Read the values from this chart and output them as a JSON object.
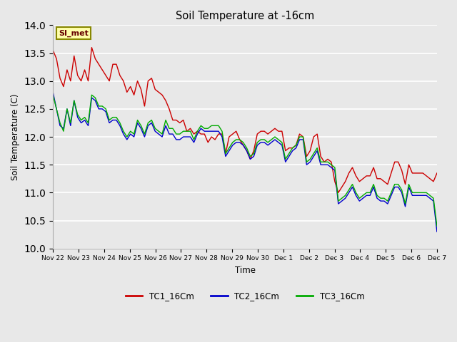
{
  "title": "Soil Temperature at -16cm",
  "xlabel": "Time",
  "ylabel": "Soil Temperature (C)",
  "ylim": [
    10.0,
    14.0
  ],
  "yticks": [
    10.0,
    10.5,
    11.0,
    11.5,
    12.0,
    12.5,
    13.0,
    13.5,
    14.0
  ],
  "fig_bg_color": "#e8e8e8",
  "plot_bg_color": "#e8e8e8",
  "annotation_text": "SI_met",
  "annotation_bg": "#ffffaa",
  "annotation_border": "#888800",
  "line_colors": {
    "TC1_16Cm": "#cc0000",
    "TC2_16Cm": "#0000cc",
    "TC3_16Cm": "#00aa00"
  },
  "xtick_labels": [
    "Nov 22",
    "Nov 23",
    "Nov 24",
    "Nov 25",
    "Nov 26",
    "Nov 27",
    "Nov 28",
    "Nov 29",
    "Nov 30",
    "Dec 1",
    "Dec 2",
    "Dec 3",
    "Dec 4",
    "Dec 5",
    "Dec 6",
    "Dec 7"
  ],
  "TC1_16Cm": [
    13.55,
    13.4,
    13.05,
    12.9,
    13.2,
    13.0,
    13.45,
    13.1,
    13.0,
    13.2,
    13.0,
    13.6,
    13.4,
    13.3,
    13.2,
    13.1,
    13.0,
    13.3,
    13.3,
    13.1,
    13.0,
    12.8,
    12.9,
    12.75,
    13.0,
    12.85,
    12.55,
    13.0,
    13.05,
    12.85,
    12.8,
    12.75,
    12.65,
    12.5,
    12.3,
    12.3,
    12.25,
    12.3,
    12.1,
    12.15,
    12.05,
    12.1,
    12.05,
    12.05,
    11.9,
    12.0,
    11.95,
    12.05,
    12.05,
    11.7,
    12.0,
    12.05,
    12.1,
    11.95,
    11.85,
    11.75,
    11.6,
    11.75,
    12.05,
    12.1,
    12.1,
    12.05,
    12.1,
    12.15,
    12.1,
    12.1,
    11.75,
    11.8,
    11.8,
    11.85,
    12.05,
    12.0,
    11.65,
    11.75,
    12.0,
    12.05,
    11.65,
    11.55,
    11.6,
    11.55,
    11.2,
    11.0,
    11.1,
    11.2,
    11.35,
    11.45,
    11.3,
    11.2,
    11.25,
    11.3,
    11.3,
    11.45,
    11.25,
    11.25,
    11.2,
    11.15,
    11.35,
    11.55,
    11.55,
    11.4,
    11.15,
    11.5,
    11.35,
    11.35,
    11.35,
    11.35,
    11.3,
    11.25,
    11.2,
    11.35
  ],
  "TC2_16Cm": [
    12.8,
    12.5,
    12.2,
    12.15,
    12.5,
    12.2,
    12.65,
    12.35,
    12.25,
    12.3,
    12.2,
    12.7,
    12.65,
    12.5,
    12.5,
    12.45,
    12.25,
    12.3,
    12.3,
    12.2,
    12.05,
    11.95,
    12.05,
    12.0,
    12.25,
    12.15,
    12.0,
    12.2,
    12.25,
    12.1,
    12.05,
    12.0,
    12.2,
    12.05,
    12.05,
    11.95,
    11.95,
    12.0,
    12.0,
    12.0,
    11.9,
    12.05,
    12.15,
    12.1,
    12.1,
    12.1,
    12.1,
    12.1,
    12.0,
    11.65,
    11.75,
    11.85,
    11.9,
    11.9,
    11.85,
    11.75,
    11.6,
    11.65,
    11.85,
    11.9,
    11.9,
    11.85,
    11.9,
    11.95,
    11.9,
    11.85,
    11.55,
    11.65,
    11.75,
    11.8,
    11.95,
    11.95,
    11.5,
    11.55,
    11.65,
    11.75,
    11.5,
    11.5,
    11.5,
    11.45,
    11.4,
    10.8,
    10.85,
    10.9,
    11.0,
    11.1,
    10.95,
    10.85,
    10.9,
    10.95,
    10.95,
    11.1,
    10.9,
    10.85,
    10.85,
    10.8,
    10.95,
    11.1,
    11.1,
    11.0,
    10.75,
    11.1,
    10.95,
    10.95,
    10.95,
    10.95,
    10.95,
    10.9,
    10.85,
    10.3
  ],
  "TC3_16Cm": [
    12.75,
    12.5,
    12.25,
    12.1,
    12.5,
    12.25,
    12.65,
    12.4,
    12.3,
    12.35,
    12.25,
    12.75,
    12.7,
    12.55,
    12.55,
    12.5,
    12.3,
    12.35,
    12.35,
    12.25,
    12.1,
    12.0,
    12.1,
    12.05,
    12.3,
    12.2,
    12.05,
    12.25,
    12.3,
    12.15,
    12.1,
    12.05,
    12.3,
    12.15,
    12.15,
    12.05,
    12.05,
    12.1,
    12.1,
    12.1,
    11.95,
    12.1,
    12.2,
    12.15,
    12.15,
    12.2,
    12.2,
    12.2,
    12.1,
    11.7,
    11.8,
    11.9,
    11.95,
    11.95,
    11.9,
    11.8,
    11.65,
    11.7,
    11.9,
    11.95,
    11.95,
    11.9,
    11.95,
    12.0,
    11.95,
    11.9,
    11.6,
    11.7,
    11.8,
    11.85,
    12.0,
    12.0,
    11.55,
    11.6,
    11.7,
    11.8,
    11.55,
    11.55,
    11.55,
    11.5,
    11.45,
    10.85,
    10.9,
    10.95,
    11.05,
    11.15,
    11.0,
    10.9,
    10.95,
    11.0,
    11.0,
    11.15,
    10.95,
    10.9,
    10.9,
    10.85,
    11.0,
    11.15,
    11.15,
    11.05,
    10.8,
    11.15,
    11.0,
    11.0,
    11.0,
    11.0,
    11.0,
    10.95,
    10.9,
    10.4
  ]
}
